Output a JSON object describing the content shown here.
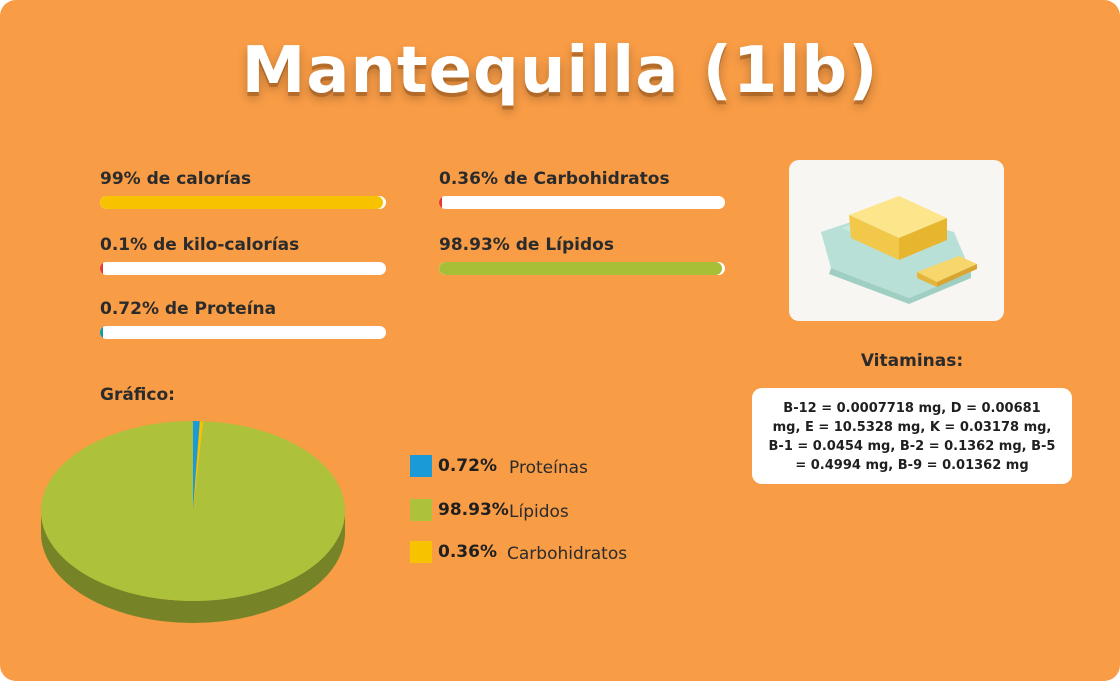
{
  "title": "Mantequilla (1lb)",
  "metrics": [
    {
      "label": "99% de calorías",
      "percent": 99,
      "color": "#F7C300"
    },
    {
      "label": "0.1% de kilo-calorías",
      "percent": 0.1,
      "color": "#E53935"
    },
    {
      "label": "0.72% de Proteína",
      "percent": 0.72,
      "color": "#0E9AA7"
    },
    {
      "label": "0.36% de Carbohidratos",
      "percent": 0.36,
      "color": "#E53935"
    },
    {
      "label": "98.93% de Lípidos",
      "percent": 98.93,
      "color": "#A7BF37"
    }
  ],
  "image": {
    "alt": "butter-block-illustration"
  },
  "vitamins": {
    "heading": "Vitaminas:",
    "text": "B-12 = 0.0007718 mg, D = 0.00681 mg, E = 10.5328 mg, K = 0.03178 mg, B-1 = 0.0454 mg, B-2 = 0.1362 mg, B-5 = 0.4994 mg, B-9 = 0.01362 mg"
  },
  "chart_heading": "Gráfico:",
  "chart_data": {
    "type": "pie",
    "title": "Gráfico:",
    "slices": [
      {
        "label": "Proteínas",
        "value": 0.72,
        "display": "0.72%",
        "color": "#1A9BD7"
      },
      {
        "label": "Lípidos",
        "value": 98.93,
        "display": "98.93%",
        "color": "#ADC13A"
      },
      {
        "label": "Carbohidratos",
        "value": 0.36,
        "display": "0.36%",
        "color": "#F7C300"
      }
    ]
  }
}
